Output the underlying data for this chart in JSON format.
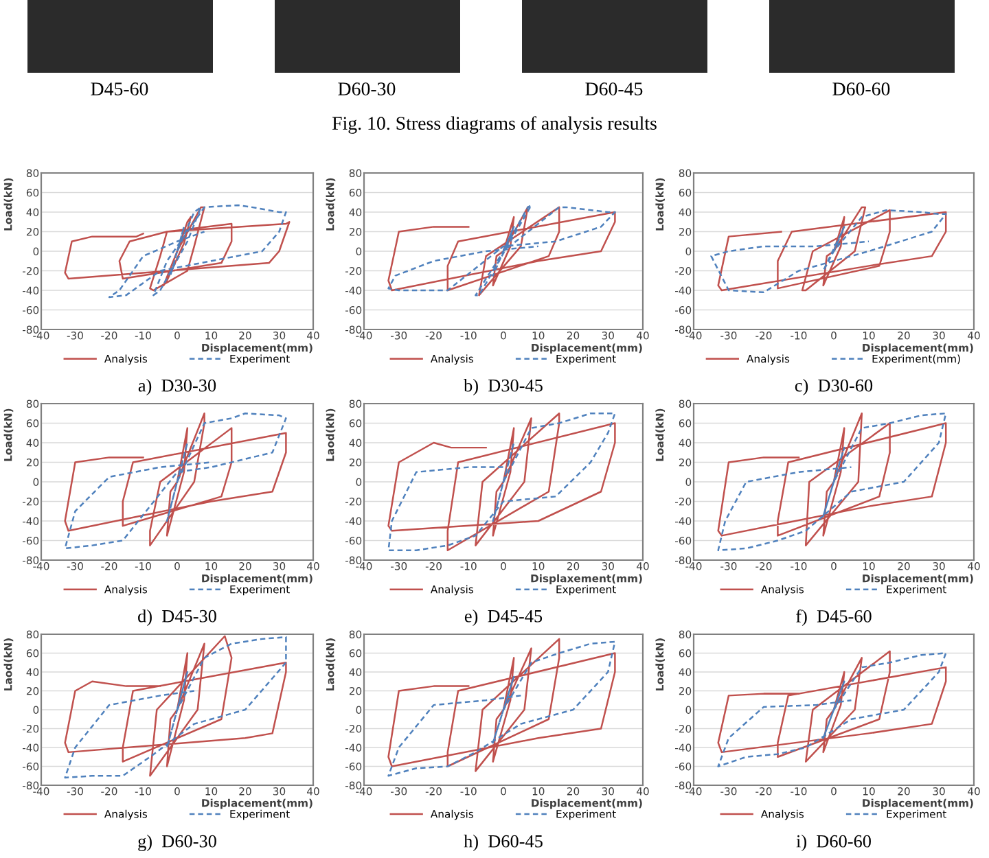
{
  "chart_data": [
    {
      "type": "other",
      "annotations": [
        "D45-60",
        "D60-30",
        "D60-45",
        "D60-60",
        "Fig. 10. Stress diagrams of analysis results"
      ]
    },
    {
      "type": "line",
      "title": "a)  D30-30",
      "xlabel": "Displacement(mm)",
      "ylabel": "Load(kN)",
      "xlim": [
        -40,
        40
      ],
      "ylim": [
        -80,
        80
      ],
      "xticks": [
        -40,
        -30,
        -20,
        -10,
        0,
        10,
        20,
        30,
        40
      ],
      "yticks": [
        -80,
        -60,
        -40,
        -20,
        0,
        20,
        40,
        60,
        80
      ],
      "grid": "y",
      "legend": "bottom",
      "series": [
        {
          "name": "Analysis",
          "color": "#c0504d",
          "line_style": "solid",
          "x": [
            0,
            3,
            4,
            2,
            -3,
            -4,
            0,
            7,
            8,
            5,
            3,
            -7,
            -8,
            -5,
            -3,
            16,
            16,
            13,
            -16,
            -17,
            -14,
            -3,
            32,
            33,
            30,
            27,
            -32,
            -33,
            -31,
            -25,
            -12,
            -10
          ],
          "values": [
            0,
            30,
            35,
            8,
            -30,
            -35,
            0,
            45,
            45,
            5,
            -20,
            -40,
            -38,
            -5,
            20,
            28,
            10,
            -12,
            -28,
            -10,
            10,
            20,
            28,
            30,
            0,
            -12,
            -28,
            -22,
            10,
            15,
            15,
            18
          ]
        },
        {
          "name": "Experiment",
          "color": "#4f81bd",
          "line_style": "dashed",
          "x": [
            0,
            2,
            -2,
            0,
            5,
            7,
            3,
            -5,
            -7,
            -3,
            8,
            18,
            22,
            30,
            32,
            30,
            25,
            10,
            -5,
            -15,
            -20,
            -17,
            -10,
            0,
            8
          ],
          "values": [
            0,
            25,
            -25,
            0,
            40,
            45,
            10,
            -40,
            -45,
            -10,
            45,
            47,
            45,
            40,
            40,
            20,
            0,
            -10,
            -20,
            -45,
            -47,
            -40,
            -5,
            10,
            20
          ]
        }
      ]
    },
    {
      "type": "line",
      "title": "b)  D30-45",
      "xlabel": "Displacement(mm)",
      "ylabel": "Load(kN)",
      "xlim": [
        -40,
        40
      ],
      "ylim": [
        -80,
        80
      ],
      "xticks": [
        -40,
        -30,
        -20,
        -10,
        0,
        10,
        20,
        30,
        40
      ],
      "yticks": [
        -80,
        -60,
        -40,
        -20,
        0,
        20,
        40,
        60,
        80
      ],
      "grid": "y",
      "legend": "bottom",
      "series": [
        {
          "name": "Analysis",
          "color": "#c0504d",
          "line_style": "solid",
          "x": [
            0,
            3,
            2,
            -3,
            -2,
            0,
            7,
            5,
            -7,
            -5,
            16,
            16,
            13,
            -16,
            -16,
            -13,
            32,
            32,
            28,
            10,
            -32,
            -33,
            -30,
            -20,
            -10
          ],
          "values": [
            0,
            35,
            5,
            -35,
            -5,
            0,
            45,
            5,
            -45,
            -5,
            45,
            20,
            -5,
            -40,
            -15,
            10,
            40,
            30,
            0,
            -10,
            -40,
            -30,
            20,
            25,
            25
          ]
        },
        {
          "name": "Experiment",
          "color": "#4f81bd",
          "line_style": "dashed",
          "x": [
            0,
            3,
            -3,
            0,
            7,
            8,
            -7,
            -8,
            0,
            16,
            18,
            30,
            32,
            28,
            15,
            0,
            -16,
            -30,
            -33,
            -31,
            -20,
            -5,
            10
          ],
          "values": [
            0,
            25,
            -25,
            0,
            45,
            47,
            -45,
            -45,
            0,
            45,
            45,
            40,
            40,
            25,
            10,
            5,
            -40,
            -40,
            -38,
            -25,
            -10,
            0,
            5
          ]
        }
      ]
    },
    {
      "type": "line",
      "title": "c)  D30-60",
      "xlabel": "Displacement(mm)",
      "ylabel": "Load(kN)",
      "xlim": [
        -40,
        40
      ],
      "ylim": [
        -80,
        80
      ],
      "xticks": [
        -40,
        -30,
        -20,
        -10,
        0,
        10,
        20,
        30,
        40
      ],
      "yticks": [
        -80,
        -60,
        -40,
        -20,
        0,
        20,
        40,
        60,
        80
      ],
      "grid": "y",
      "legend": "bottom",
      "series": [
        {
          "name": "Analysis",
          "color": "#c0504d",
          "line_style": "solid",
          "x": [
            0,
            3,
            2,
            -3,
            -2,
            0,
            8,
            9,
            6,
            -8,
            -9,
            -6,
            16,
            16,
            13,
            -16,
            -16,
            -12,
            32,
            32,
            28,
            10,
            -32,
            -33,
            -30,
            -15
          ],
          "values": [
            0,
            35,
            5,
            -35,
            -5,
            0,
            45,
            45,
            0,
            -40,
            -40,
            0,
            42,
            20,
            -15,
            -38,
            -10,
            20,
            40,
            20,
            -5,
            -15,
            -40,
            -35,
            15,
            20
          ]
        },
        {
          "name": "Experiment(mm)",
          "color": "#4f81bd",
          "line_style": "dashed",
          "x": [
            0,
            3,
            -3,
            0,
            8,
            15,
            25,
            30,
            32,
            28,
            10,
            -10,
            -20,
            -30,
            -35,
            -30,
            -20,
            -5,
            10
          ],
          "values": [
            0,
            25,
            -20,
            0,
            35,
            42,
            40,
            38,
            38,
            20,
            0,
            -20,
            -42,
            -40,
            -5,
            0,
            5,
            5,
            10
          ]
        }
      ]
    },
    {
      "type": "line",
      "title": "d)  D45-30",
      "xlabel": "Displacement(mm)",
      "ylabel": "Load(kN)",
      "xlim": [
        -40,
        40
      ],
      "ylim": [
        -80,
        80
      ],
      "xticks": [
        -40,
        -30,
        -20,
        -10,
        0,
        10,
        20,
        30,
        40
      ],
      "yticks": [
        -80,
        -60,
        -40,
        -20,
        0,
        20,
        40,
        60,
        80
      ],
      "grid": "y",
      "legend": "bottom",
      "series": [
        {
          "name": "Analysis",
          "color": "#c0504d",
          "line_style": "solid",
          "x": [
            0,
            3,
            2,
            -3,
            -2,
            0,
            8,
            8,
            5,
            -8,
            -8,
            -5,
            16,
            16,
            13,
            -16,
            -16,
            -13,
            32,
            32,
            28,
            10,
            -32,
            -33,
            -30,
            -20,
            -10
          ],
          "values": [
            0,
            55,
            10,
            -55,
            -10,
            0,
            70,
            60,
            0,
            -65,
            -50,
            0,
            55,
            20,
            -15,
            -45,
            -20,
            20,
            50,
            30,
            -10,
            -20,
            -50,
            -40,
            20,
            25,
            25
          ]
        },
        {
          "name": "Experiment",
          "color": "#4f81bd",
          "line_style": "dashed",
          "x": [
            0,
            3,
            -3,
            0,
            8,
            16,
            20,
            30,
            32,
            28,
            10,
            0,
            -16,
            -25,
            -33,
            -30,
            -20,
            -5,
            10
          ],
          "values": [
            0,
            40,
            -40,
            0,
            60,
            65,
            70,
            68,
            65,
            30,
            15,
            10,
            -60,
            -65,
            -68,
            -30,
            5,
            15,
            20
          ]
        }
      ]
    },
    {
      "type": "line",
      "title": "e)  D45-45",
      "xlabel": "Displaxement(mm)",
      "ylabel": "Laod(kN)",
      "xlim": [
        -40,
        40
      ],
      "ylim": [
        -80,
        80
      ],
      "xticks": [
        -40,
        -30,
        -20,
        -10,
        0,
        10,
        20,
        30,
        40
      ],
      "yticks": [
        -80,
        -60,
        -40,
        -20,
        0,
        20,
        40,
        60,
        80
      ],
      "grid": "y",
      "legend": "bottom",
      "series": [
        {
          "name": "Analysis",
          "color": "#c0504d",
          "line_style": "solid",
          "x": [
            0,
            3,
            2,
            -3,
            -2,
            0,
            8,
            6,
            -8,
            -6,
            16,
            16,
            13,
            -16,
            -16,
            -13,
            32,
            32,
            28,
            10,
            -32,
            -33,
            -30,
            -20,
            -15,
            -5
          ],
          "values": [
            0,
            55,
            10,
            -55,
            -10,
            0,
            65,
            0,
            -65,
            0,
            70,
            60,
            -10,
            -70,
            -50,
            20,
            60,
            40,
            -10,
            -40,
            -50,
            -45,
            20,
            40,
            35,
            35
          ]
        },
        {
          "name": "Experiment",
          "color": "#4f81bd",
          "line_style": "dashed",
          "x": [
            0,
            3,
            -3,
            0,
            8,
            16,
            25,
            32,
            30,
            25,
            15,
            0,
            -8,
            -16,
            -25,
            -33,
            -32,
            -25,
            -10,
            0
          ],
          "values": [
            0,
            40,
            -40,
            0,
            55,
            60,
            70,
            70,
            50,
            20,
            -15,
            -20,
            -55,
            -65,
            -70,
            -70,
            -40,
            10,
            15,
            15
          ]
        }
      ]
    },
    {
      "type": "line",
      "title": "f)  D45-60",
      "xlabel": "Displacement(mm)",
      "ylabel": "Load(kN)",
      "xlim": [
        -40,
        40
      ],
      "ylim": [
        -80,
        80
      ],
      "xticks": [
        -40,
        -30,
        -20,
        -10,
        0,
        10,
        20,
        30,
        40
      ],
      "yticks": [
        -80,
        -60,
        -40,
        -20,
        0,
        20,
        40,
        60,
        80
      ],
      "grid": "y",
      "legend": "bottom",
      "series": [
        {
          "name": "Analysis",
          "color": "#c0504d",
          "line_style": "solid",
          "x": [
            0,
            3,
            2,
            -3,
            -2,
            0,
            8,
            7,
            -8,
            -7,
            16,
            16,
            13,
            -16,
            -16,
            -13,
            32,
            32,
            28,
            10,
            -32,
            -33,
            -30,
            -20,
            -10
          ],
          "values": [
            0,
            55,
            10,
            -55,
            -10,
            0,
            70,
            0,
            -65,
            0,
            60,
            30,
            -15,
            -55,
            -40,
            20,
            60,
            40,
            -15,
            -25,
            -55,
            -50,
            20,
            25,
            25
          ]
        },
        {
          "name": "Experiment",
          "color": "#4f81bd",
          "line_style": "dashed",
          "x": [
            0,
            3,
            -3,
            0,
            8,
            16,
            25,
            32,
            30,
            20,
            5,
            -8,
            -16,
            -25,
            -33,
            -31,
            -25,
            -10,
            5
          ],
          "values": [
            0,
            35,
            -35,
            0,
            55,
            60,
            68,
            70,
            40,
            0,
            -10,
            -50,
            -60,
            -68,
            -70,
            -40,
            0,
            10,
            15
          ]
        }
      ]
    },
    {
      "type": "line",
      "title": "g)  D60-30",
      "xlabel": "Displacement(mm)",
      "ylabel": "Laod(kN)",
      "xlim": [
        -40,
        40
      ],
      "ylim": [
        -80,
        80
      ],
      "xticks": [
        -40,
        -30,
        -20,
        -10,
        0,
        10,
        20,
        30,
        40
      ],
      "yticks": [
        -80,
        -60,
        -40,
        -20,
        0,
        20,
        40,
        60,
        80
      ],
      "grid": "y",
      "legend": "bottom",
      "series": [
        {
          "name": "Analysis",
          "color": "#c0504d",
          "line_style": "solid",
          "x": [
            0,
            3,
            2,
            -3,
            -2,
            0,
            8,
            6,
            -8,
            -6,
            14,
            16,
            13,
            -16,
            -16,
            -13,
            32,
            32,
            28,
            20,
            -32,
            -33,
            -30,
            -25,
            -15,
            -5
          ],
          "values": [
            0,
            60,
            10,
            -60,
            -10,
            0,
            70,
            0,
            -70,
            0,
            78,
            55,
            -10,
            -55,
            -40,
            20,
            50,
            40,
            -25,
            -30,
            -45,
            -35,
            20,
            30,
            25,
            25
          ]
        },
        {
          "name": "Experiment",
          "color": "#4f81bd",
          "line_style": "dashed",
          "x": [
            0,
            3,
            -3,
            0,
            8,
            16,
            25,
            32,
            32,
            20,
            5,
            -8,
            -16,
            -25,
            -33,
            -30,
            -20,
            -5,
            5
          ],
          "values": [
            0,
            40,
            -40,
            0,
            55,
            70,
            75,
            77,
            50,
            0,
            -15,
            -50,
            -70,
            -70,
            -72,
            -40,
            5,
            15,
            20
          ]
        }
      ]
    },
    {
      "type": "line",
      "title": "h)  D60-45",
      "xlabel": "Displacement(mm)",
      "ylabel": "Laod(kN)",
      "xlim": [
        -40,
        40
      ],
      "ylim": [
        -80,
        80
      ],
      "xticks": [
        -40,
        -30,
        -20,
        -10,
        0,
        10,
        20,
        30,
        40
      ],
      "yticks": [
        -80,
        -60,
        -40,
        -20,
        0,
        20,
        40,
        60,
        80
      ],
      "grid": "y",
      "legend": "bottom",
      "series": [
        {
          "name": "Analysis",
          "color": "#c0504d",
          "line_style": "solid",
          "x": [
            0,
            3,
            2,
            -3,
            -2,
            0,
            8,
            6,
            -8,
            -6,
            16,
            16,
            13,
            -16,
            -16,
            -13,
            32,
            32,
            28,
            10,
            -32,
            -33,
            -30,
            -20,
            -10
          ],
          "values": [
            0,
            55,
            10,
            -55,
            -10,
            0,
            65,
            0,
            -65,
            0,
            75,
            55,
            -10,
            -60,
            -45,
            20,
            60,
            40,
            -20,
            -30,
            -60,
            -50,
            20,
            25,
            25
          ]
        },
        {
          "name": "Experiment",
          "color": "#4f81bd",
          "line_style": "dashed",
          "x": [
            0,
            3,
            -3,
            0,
            8,
            16,
            25,
            32,
            30,
            20,
            5,
            -8,
            -16,
            -25,
            -33,
            -30,
            -20,
            -5,
            5
          ],
          "values": [
            0,
            35,
            -35,
            0,
            50,
            60,
            70,
            72,
            40,
            0,
            -15,
            -45,
            -60,
            -62,
            -70,
            -40,
            5,
            10,
            15
          ]
        }
      ]
    },
    {
      "type": "line",
      "title": "i)  D60-60",
      "xlabel": "Displacement(mm)",
      "ylabel": "Load(kN)",
      "xlim": [
        -40,
        40
      ],
      "ylim": [
        -80,
        80
      ],
      "xticks": [
        -40,
        -30,
        -20,
        -10,
        0,
        10,
        20,
        30,
        40
      ],
      "yticks": [
        -80,
        -60,
        -40,
        -20,
        0,
        20,
        40,
        60,
        80
      ],
      "grid": "y",
      "legend": "bottom",
      "series": [
        {
          "name": "Analysis",
          "color": "#c0504d",
          "line_style": "solid",
          "x": [
            0,
            3,
            2,
            -3,
            -2,
            0,
            8,
            6,
            -8,
            -6,
            16,
            16,
            13,
            -16,
            -16,
            -13,
            32,
            32,
            28,
            10,
            -32,
            -33,
            -30,
            -20,
            -10
          ],
          "values": [
            0,
            40,
            5,
            -45,
            -10,
            0,
            55,
            0,
            -55,
            0,
            62,
            40,
            -10,
            -50,
            -35,
            15,
            45,
            30,
            -15,
            -25,
            -45,
            -35,
            15,
            17,
            17
          ]
        },
        {
          "name": "Experiment",
          "color": "#4f81bd",
          "line_style": "dashed",
          "x": [
            0,
            3,
            -3,
            0,
            8,
            16,
            25,
            32,
            30,
            20,
            5,
            -8,
            -16,
            -25,
            -33,
            -30,
            -20,
            -5,
            5
          ],
          "values": [
            0,
            30,
            -30,
            0,
            45,
            50,
            58,
            60,
            40,
            0,
            -10,
            -40,
            -47,
            -50,
            -60,
            -30,
            3,
            5,
            10
          ]
        }
      ]
    }
  ]
}
